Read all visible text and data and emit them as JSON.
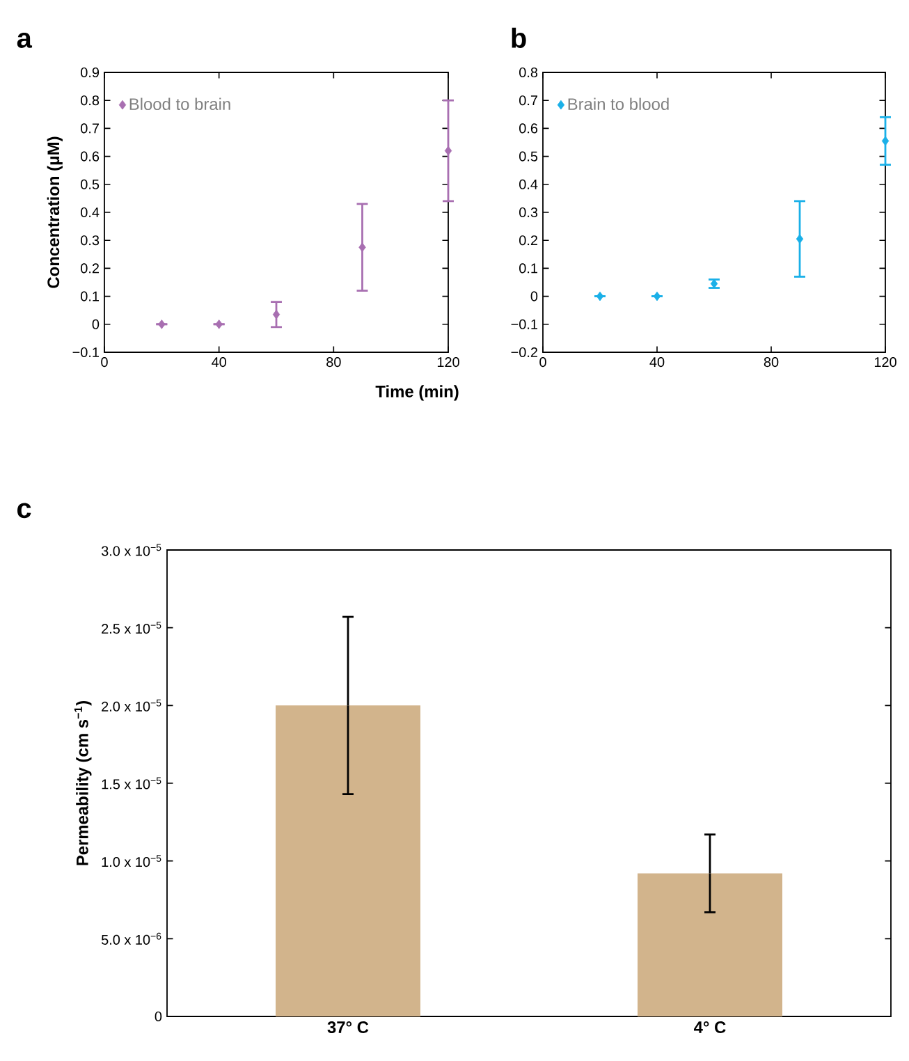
{
  "chart_data": [
    {
      "type": "scatter",
      "title": "a",
      "xlabel": "Time (min)",
      "ylabel": "Concentration (μM)",
      "x": [
        20,
        40,
        60,
        90,
        120
      ],
      "series": [
        {
          "name": "Blood to brain",
          "color": "#a86fb1",
          "values": [
            0,
            0,
            0.035,
            0.275,
            0.62
          ],
          "errors": [
            null,
            null,
            0.045,
            0.155,
            0.18
          ]
        }
      ],
      "xlim": [
        0,
        120
      ],
      "xticks": [
        0,
        40,
        80,
        120
      ],
      "ylim": [
        -0.1,
        0.9
      ],
      "yticks": [
        {
          "value": -0.1,
          "label": "−0.1"
        },
        0,
        0.1,
        0.2,
        0.3,
        0.4,
        0.5,
        0.6,
        0.7,
        0.8,
        0.9
      ],
      "marker": "diamond",
      "legend": "top left"
    },
    {
      "type": "scatter",
      "title": "b",
      "x": [
        20,
        40,
        60,
        90,
        120
      ],
      "series": [
        {
          "name": "Brain to blood",
          "color": "#1ab0e8",
          "values": [
            0,
            0,
            0.045,
            0.205,
            0.555
          ],
          "errors": [
            null,
            null,
            0.015,
            0.135,
            0.085
          ]
        }
      ],
      "xlim": [
        0,
        120
      ],
      "xticks": [
        0,
        40,
        80,
        120
      ],
      "ylim": [
        -0.2,
        0.8
      ],
      "yticks": [
        {
          "value": -0.2,
          "label": "−0.2"
        },
        {
          "value": -0.1,
          "label": "−0.1"
        },
        0,
        0.1,
        0.2,
        0.3,
        0.4,
        0.5,
        0.6,
        0.7,
        0.8
      ],
      "marker": "diamond",
      "legend": "top left"
    },
    {
      "type": "bar",
      "title": "c",
      "ylabel": "Permeability (cm s$^{−1}$)",
      "categories": [
        "37° C",
        "4° C"
      ],
      "values": [
        2e-05,
        9.2e-06
      ],
      "errors": [
        5.7e-06,
        2.5e-06
      ],
      "color": "#d2b48c",
      "ylim": [
        0,
        3e-05
      ],
      "yticks": [
        0,
        {
          "value": 5e-06,
          "label": "5.0 x 10$^{−6}$"
        },
        {
          "value": 1e-05,
          "label": "1.0 x 10$^{−5}$"
        },
        {
          "value": 1.5e-05,
          "label": "1.5 x 10$^{−5}$"
        },
        {
          "value": 2e-05,
          "label": "2.0 x 10$^{−5}$"
        },
        {
          "value": 2.5e-05,
          "label": "2.5 x 10$^{−5}$"
        },
        {
          "value": 3e-05,
          "label": "3.0 x 10$^{−5}$"
        }
      ]
    }
  ]
}
